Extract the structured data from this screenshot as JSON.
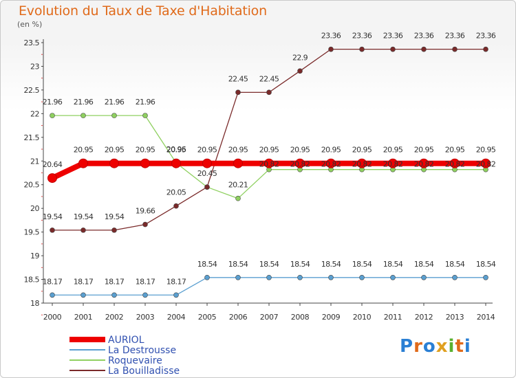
{
  "title": "Evolution du Taux de Taxe d'Habitation",
  "subtitle": "(en %)",
  "logo": {
    "text": [
      "P",
      "r",
      "o",
      "x",
      "i",
      "t",
      "i"
    ],
    "colors": [
      "#2a7fd4",
      "#e06a1a",
      "#2a7fd4",
      "#e0a020",
      "#5ab030",
      "#e06a1a",
      "#2a7fd4"
    ]
  },
  "chart_data": {
    "type": "line",
    "title": "Evolution du Taux de Taxe d'Habitation",
    "ylabel": "(en %)",
    "xlabel": "",
    "x": [
      "2000",
      "2001",
      "2002",
      "2003",
      "2004",
      "2005",
      "2006",
      "2007",
      "2008",
      "2009",
      "2010",
      "2011",
      "2012",
      "2013",
      "2014"
    ],
    "ylim": [
      18,
      23.5
    ],
    "yticks": [
      "18",
      "18.5",
      "19",
      "19.5",
      "20",
      "20.5",
      "21",
      "21.5",
      "22",
      "22.5",
      "23",
      "23.5"
    ],
    "grid": false,
    "legend": "bottom-left",
    "series": [
      {
        "name": "AURIOL",
        "color": "#ee0000",
        "values": [
          20.64,
          20.95,
          20.95,
          20.95,
          20.95,
          20.95,
          20.95,
          20.95,
          20.95,
          20.95,
          20.95,
          20.95,
          20.95,
          20.95,
          20.95
        ],
        "labels": [
          "20.64",
          "20.95",
          "20.95",
          "20.95",
          "20.95",
          "20.95",
          "20.95",
          "20.95",
          "20.95",
          "20.95",
          "20.95",
          "20.95",
          "20.95",
          "20.95",
          "20.95"
        ]
      },
      {
        "name": "La Destrousse",
        "color": "#5a9fd0",
        "values": [
          18.17,
          18.17,
          18.17,
          18.17,
          18.17,
          18.54,
          18.54,
          18.54,
          18.54,
          18.54,
          18.54,
          18.54,
          18.54,
          18.54,
          18.54
        ],
        "labels": [
          "18.17",
          "18.17",
          "18.17",
          "18.17",
          "18.17",
          "18.54",
          "18.54",
          "18.54",
          "18.54",
          "18.54",
          "18.54",
          "18.54",
          "18.54",
          "18.54",
          "18.54"
        ]
      },
      {
        "name": "Roquevaire",
        "color": "#8fd060",
        "values": [
          21.96,
          21.96,
          21.96,
          21.96,
          20.96,
          20.45,
          20.21,
          20.82,
          20.82,
          20.82,
          20.82,
          20.82,
          20.82,
          20.82,
          20.82
        ],
        "labels": [
          "21.96",
          "21.96",
          "21.96",
          "21.96",
          "20.96",
          "",
          "20.21",
          "20.82",
          "20.82",
          "20.82",
          "20.82",
          "20.82",
          "20.82",
          "20.82",
          "20.82"
        ]
      },
      {
        "name": "La Bouilladisse",
        "color": "#7a2a2a",
        "values": [
          19.54,
          19.54,
          19.54,
          19.66,
          20.05,
          20.45,
          22.45,
          22.45,
          22.9,
          23.36,
          23.36,
          23.36,
          23.36,
          23.36,
          23.36
        ],
        "labels": [
          "19.54",
          "19.54",
          "19.54",
          "19.66",
          "20.05",
          "20.45",
          "22.45",
          "22.45",
          "22.9",
          "23.36",
          "23.36",
          "23.36",
          "23.36",
          "23.36",
          "23.36"
        ]
      }
    ]
  }
}
